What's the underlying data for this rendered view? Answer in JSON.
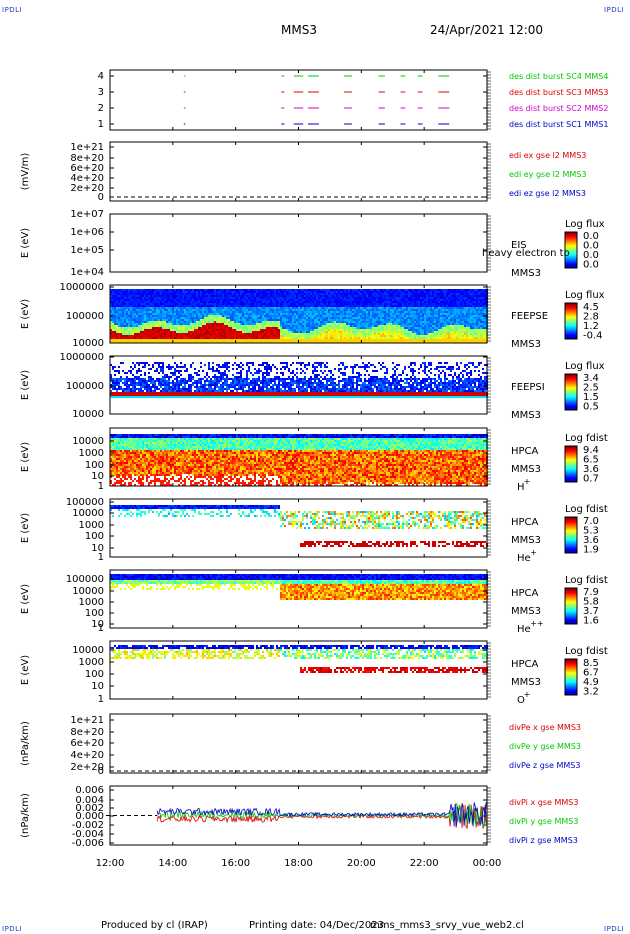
{
  "header": {
    "corner_tl": "IPDLI",
    "corner_tr": "IPDLI",
    "corner_bl": "IPDLI",
    "corner_br": "IPDLI",
    "spacecraft": "MMS3",
    "datetime": "24/Apr/2021 12:00"
  },
  "footer": {
    "produced": "Produced by cl (IRAP)",
    "printing": "Printing date: 04/Dec/2023",
    "filename": "mms_mms3_srvy_vue_web2.cl"
  },
  "colors": {
    "ax_blue": "#0000c8",
    "ax_magenta": "#d200d2",
    "ax_red": "#dc0000",
    "ax_green": "#00c800"
  },
  "chart_data": {
    "type": "heatmap",
    "time_axis": {
      "labels": [
        "12:00",
        "14:00",
        "16:00",
        "18:00",
        "20:00",
        "22:00",
        "00:00"
      ],
      "range_hours": [
        12,
        24
      ]
    },
    "panels": [
      {
        "id": "burst",
        "type": "scatter",
        "yticks": [
          "4",
          "3",
          "2",
          "1"
        ],
        "ylim": [
          0.5,
          4.5
        ],
        "legend": [
          {
            "text": "des dist burst SC1 MMS1",
            "color": "#0000c8",
            "y": 1
          },
          {
            "text": "des dist burst SC2 MMS2",
            "color": "#d200d2",
            "y": 2
          },
          {
            "text": "des dist burst SC3 MMS3",
            "color": "#dc0000",
            "y": 3
          },
          {
            "text": "des dist burst SC4 MMS4",
            "color": "#00c800",
            "y": 4
          }
        ],
        "intervals": [
          [
            14.35,
            14.4
          ],
          [
            17.45,
            17.55
          ],
          [
            17.85,
            18.15
          ],
          [
            18.3,
            18.65
          ],
          [
            19.45,
            19.7
          ],
          [
            20.55,
            20.75
          ],
          [
            21.25,
            21.4
          ],
          [
            21.8,
            21.95
          ],
          [
            22.45,
            22.8
          ]
        ]
      },
      {
        "id": "edi",
        "type": "line",
        "ylabel": "(mV/m)",
        "yticks": [
          "1e+21",
          "8e+20",
          "6e+20",
          "4e+20",
          "2e+20",
          "0"
        ],
        "yvalues": [
          1e+21,
          8e+20,
          6e+20,
          4e+20,
          2e+20,
          0
        ],
        "ylim": [
          0,
          1e+21
        ],
        "legend": [
          {
            "text": "edi ex gse l2 MMS3",
            "color": "#dc0000"
          },
          {
            "text": "edi ey gse l2 MMS3",
            "color": "#00c800"
          },
          {
            "text": "edi ez gse l2 MMS3",
            "color": "#0000c8"
          }
        ]
      },
      {
        "id": "eis",
        "type": "heatmap",
        "ylabel": "E (eV)",
        "yticks": [
          "1e+07",
          "1e+06",
          "1e+05",
          "1e+04"
        ],
        "right_labels": [
          "EIS",
          "MMS3"
        ],
        "overlay_text": "heavy electron to",
        "colorbar": {
          "title": "Log flux",
          "ticks": [
            "0.0",
            "0.0",
            "0.0",
            "0.0"
          ]
        }
      },
      {
        "id": "feeps_e",
        "type": "heatmap",
        "ylabel": "E (eV)",
        "yticks": [
          "1000000",
          "100000",
          "10000"
        ],
        "right_labels": [
          "FEEPSE",
          "MMS3"
        ],
        "colorbar": {
          "title": "Log flux",
          "ticks": [
            "4.5",
            "2.8",
            "1.2",
            "-0.4"
          ]
        }
      },
      {
        "id": "feeps_i",
        "type": "heatmap",
        "ylabel": "E (eV)",
        "yticks": [
          "1000000",
          "100000",
          "10000"
        ],
        "right_labels": [
          "FEEPSI",
          "MMS3"
        ],
        "colorbar": {
          "title": "Log flux",
          "ticks": [
            "3.4",
            "2.5",
            "1.5",
            "0.5"
          ]
        }
      },
      {
        "id": "hpca_h",
        "type": "heatmap",
        "ylabel": "E (eV)",
        "yticks": [
          "10000",
          "1000",
          "100",
          "10",
          "1"
        ],
        "right_labels": [
          "HPCA",
          "MMS3"
        ],
        "species": "H",
        "charge": "+",
        "colorbar": {
          "title": "Log fdist",
          "ticks": [
            "9.4",
            "6.5",
            "3.6",
            "0.7"
          ]
        }
      },
      {
        "id": "hpca_he",
        "type": "heatmap",
        "ylabel": "E (eV)",
        "yticks": [
          "100000",
          "10000",
          "1000",
          "100",
          "10",
          "1"
        ],
        "right_labels": [
          "HPCA",
          "MMS3"
        ],
        "species": "He",
        "charge": "+",
        "colorbar": {
          "title": "Log fdist",
          "ticks": [
            "7.0",
            "5.3",
            "3.6",
            "1.9"
          ]
        }
      },
      {
        "id": "hpca_hepp",
        "type": "heatmap",
        "ylabel": "E (eV)",
        "yticks": [
          "100000",
          "10000",
          "1000",
          "100",
          "10",
          "1"
        ],
        "right_labels": [
          "HPCA",
          "MMS3"
        ],
        "species": "He",
        "charge": "++",
        "colorbar": {
          "title": "Log fdist",
          "ticks": [
            "7.9",
            "5.8",
            "3.7",
            "1.6"
          ]
        }
      },
      {
        "id": "hpca_o",
        "type": "heatmap",
        "ylabel": "E (eV)",
        "yticks": [
          "10000",
          "1000",
          "100",
          "10",
          "1"
        ],
        "right_labels": [
          "HPCA",
          "MMS3"
        ],
        "species": "O",
        "charge": "+",
        "colorbar": {
          "title": "Log fdist",
          "ticks": [
            "8.5",
            "6.7",
            "4.9",
            "3.2"
          ]
        }
      },
      {
        "id": "divpe",
        "type": "line",
        "ylabel": "(nPa/km)",
        "yticks": [
          "1e+21",
          "8e+20",
          "6e+20",
          "4e+20",
          "2e+20",
          "0"
        ],
        "yvalues": [
          1e+21,
          8e+20,
          6e+20,
          4e+20,
          2e+20,
          0
        ],
        "ylim": [
          0,
          1e+21
        ],
        "legend": [
          {
            "text": "divPe x gse MMS3",
            "color": "#dc0000"
          },
          {
            "text": "divPe y gse MMS3",
            "color": "#00c800"
          },
          {
            "text": "divPe z gse MMS3",
            "color": "#0000c8"
          }
        ]
      },
      {
        "id": "divpi",
        "type": "line",
        "ylabel": "(nPa/km)",
        "yticks": [
          "0.006",
          "0.004",
          "0.002",
          "0.000",
          "-0.002",
          "-0.004",
          "-0.006"
        ],
        "yvalues": [
          0.006,
          0.004,
          0.002,
          0,
          -0.002,
          -0.004,
          -0.006
        ],
        "ylim": [
          -0.007,
          0.007
        ],
        "data_start_hour": 13.5,
        "legend": [
          {
            "text": "divPi x gse MMS3",
            "color": "#dc0000"
          },
          {
            "text": "divPi y gse MMS3",
            "color": "#00c800"
          },
          {
            "text": "divPi z gse MMS3",
            "color": "#0000c8"
          }
        ]
      }
    ]
  }
}
